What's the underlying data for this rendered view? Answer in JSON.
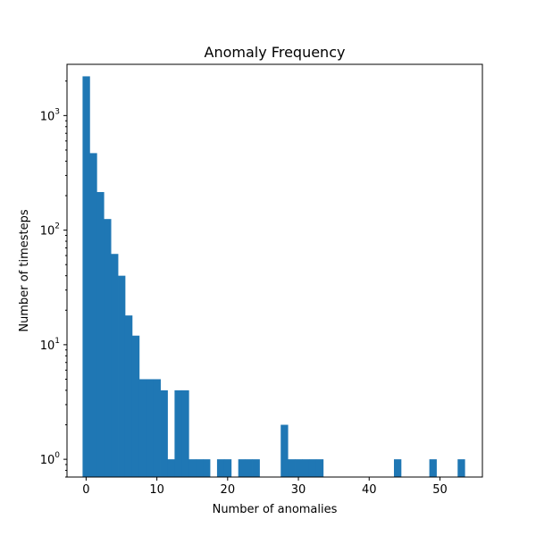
{
  "chart_data": {
    "type": "bar",
    "title": "Anomaly Frequency",
    "xlabel": "Number of anomalies",
    "ylabel": "Number of timesteps",
    "yscale": "log",
    "xlim": [
      -2.7,
      56.0
    ],
    "ylim": [
      0.7,
      2800
    ],
    "grid": false,
    "color": "#1f77b4",
    "bin_width": 1.0,
    "x_start": -0.5,
    "values": [
      2200,
      470,
      215,
      125,
      62,
      40,
      18,
      12,
      5,
      5,
      5,
      4,
      1,
      4,
      4,
      1,
      1,
      1,
      0,
      1,
      1,
      0,
      1,
      1,
      1,
      0,
      0,
      0,
      2,
      1,
      1,
      1,
      1,
      1,
      0,
      0,
      0,
      0,
      0,
      0,
      0,
      0,
      0,
      0,
      1,
      0,
      0,
      0,
      0,
      1,
      0,
      0,
      0,
      1
    ],
    "x_ticks": [
      {
        "value": 0,
        "label": "0"
      },
      {
        "value": 10,
        "label": "10"
      },
      {
        "value": 20,
        "label": "20"
      },
      {
        "value": 30,
        "label": "30"
      },
      {
        "value": 40,
        "label": "40"
      },
      {
        "value": 50,
        "label": "50"
      }
    ],
    "y_ticks": [
      {
        "value": 1,
        "base": "10",
        "exp": "0"
      },
      {
        "value": 10,
        "base": "10",
        "exp": "1"
      },
      {
        "value": 100,
        "base": "10",
        "exp": "2"
      },
      {
        "value": 1000,
        "base": "10",
        "exp": "3"
      }
    ]
  }
}
